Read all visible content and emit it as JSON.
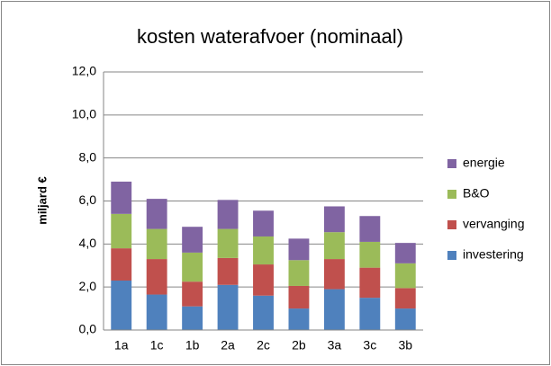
{
  "chart_data": {
    "type": "stacked_bar",
    "title": "kosten waterafvoer (nominaal)",
    "y_label": "miljard  €",
    "categories": [
      "1a",
      "1c",
      "1b",
      "2a",
      "2c",
      "2b",
      "3a",
      "3c",
      "3b"
    ],
    "series": [
      {
        "name": "investering",
        "color": "#4f81bd",
        "values": [
          2.3,
          1.65,
          1.1,
          2.1,
          1.6,
          1.0,
          1.9,
          1.5,
          1.0
        ]
      },
      {
        "name": "vervanging",
        "color": "#c0504d",
        "values": [
          1.5,
          1.65,
          1.15,
          1.25,
          1.45,
          1.05,
          1.4,
          1.4,
          0.95
        ]
      },
      {
        "name": "B&O",
        "color": "#9bbb59",
        "values": [
          1.6,
          1.4,
          1.35,
          1.35,
          1.3,
          1.2,
          1.25,
          1.2,
          1.15
        ]
      },
      {
        "name": "energie",
        "color": "#8064a2",
        "values": [
          1.5,
          1.4,
          1.2,
          1.35,
          1.2,
          1.0,
          1.2,
          1.2,
          0.95
        ]
      }
    ],
    "ylim": [
      0,
      12
    ],
    "yticks": [
      {
        "value": 0,
        "label": "0,0"
      },
      {
        "value": 2,
        "label": "2,0"
      },
      {
        "value": 4,
        "label": "4,0"
      },
      {
        "value": 6,
        "label": "6,0"
      },
      {
        "value": 8,
        "label": "8,0"
      },
      {
        "value": 10,
        "label": "10,0"
      },
      {
        "value": 12,
        "label": "12,0"
      }
    ],
    "grid": true,
    "legend": "right"
  }
}
